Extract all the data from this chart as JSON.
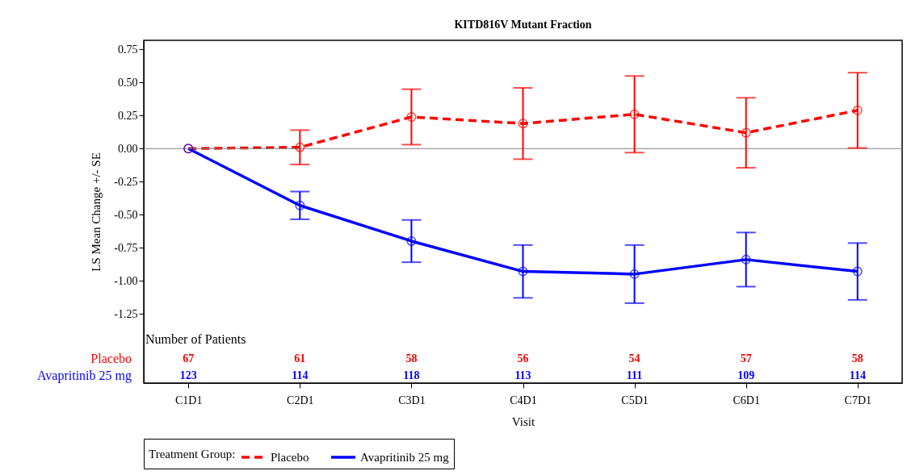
{
  "chart_data": {
    "type": "line",
    "title": "KITD816V Mutant Fraction",
    "xlabel": "Visit",
    "ylabel": "LS Mean Change +/- SE",
    "legend_title": "Treatment Group:",
    "categories": [
      "C1D1",
      "C2D1",
      "C3D1",
      "C4D1",
      "C5D1",
      "C6D1",
      "C7D1"
    ],
    "series": [
      {
        "name": "Placebo",
        "color": "#ff0000",
        "line_style": "dashed",
        "values": [
          0,
          0.01,
          0.24,
          0.19,
          0.26,
          0.12,
          0.29
        ],
        "errors": [
          null,
          0.13,
          0.21,
          0.27,
          0.29,
          0.265,
          0.285
        ]
      },
      {
        "name": "Avapritinib 25 mg",
        "color": "#0000ff",
        "line_style": "solid",
        "values": [
          0,
          -0.43,
          -0.7,
          -0.93,
          -0.95,
          -0.84,
          -0.93
        ],
        "errors": [
          null,
          0.105,
          0.16,
          0.2,
          0.22,
          0.205,
          0.215
        ]
      }
    ],
    "marker": "circle",
    "ylim": [
      -1.775,
      0.82
    ],
    "yticks": [
      {
        "value": -1.25,
        "label": "-1.25"
      },
      {
        "value": -1,
        "label": "-1.00"
      },
      {
        "value": -0.75,
        "label": "-0.75"
      },
      {
        "value": -0.5,
        "label": "-0.50"
      },
      {
        "value": -0.25,
        "label": "-0.25"
      },
      {
        "value": 0,
        "label": "0.00"
      },
      {
        "value": 0.25,
        "label": "0.25"
      },
      {
        "value": 0.5,
        "label": "0.50"
      },
      {
        "value": 0.75,
        "label": "0.75"
      }
    ],
    "grid": false,
    "legend": "bottom",
    "ref_lines": [
      {
        "axis": "y",
        "value": 0,
        "color": "#808080"
      }
    ],
    "annotations": [
      "Number of Patients",
      "Placebo",
      "67",
      "61",
      "58",
      "56",
      "54",
      "57",
      "58",
      "Avapritinib 25 mg",
      "123",
      "114",
      "118",
      "113",
      "111",
      "109",
      "114"
    ]
  }
}
